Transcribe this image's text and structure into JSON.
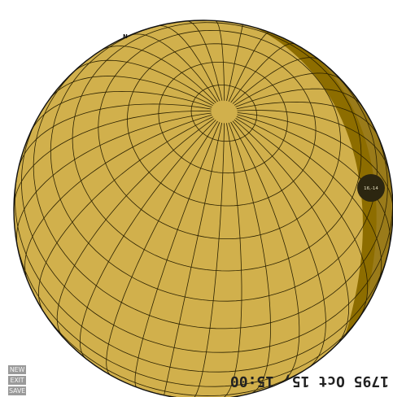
{
  "globe": {
    "compass_label": "N",
    "marker_label": "16,-14",
    "colors": {
      "lit": "#d1b04c",
      "shadow_band": "#8d6d00",
      "outline": "#111111",
      "grid": "#2b2100",
      "marker": "#2c2610"
    }
  },
  "menu": {
    "new_label": "NEW",
    "exit_label": "EXIT",
    "save_label": "SAVE"
  },
  "status": {
    "datetime": "1795 Oct 15, 15:00"
  }
}
